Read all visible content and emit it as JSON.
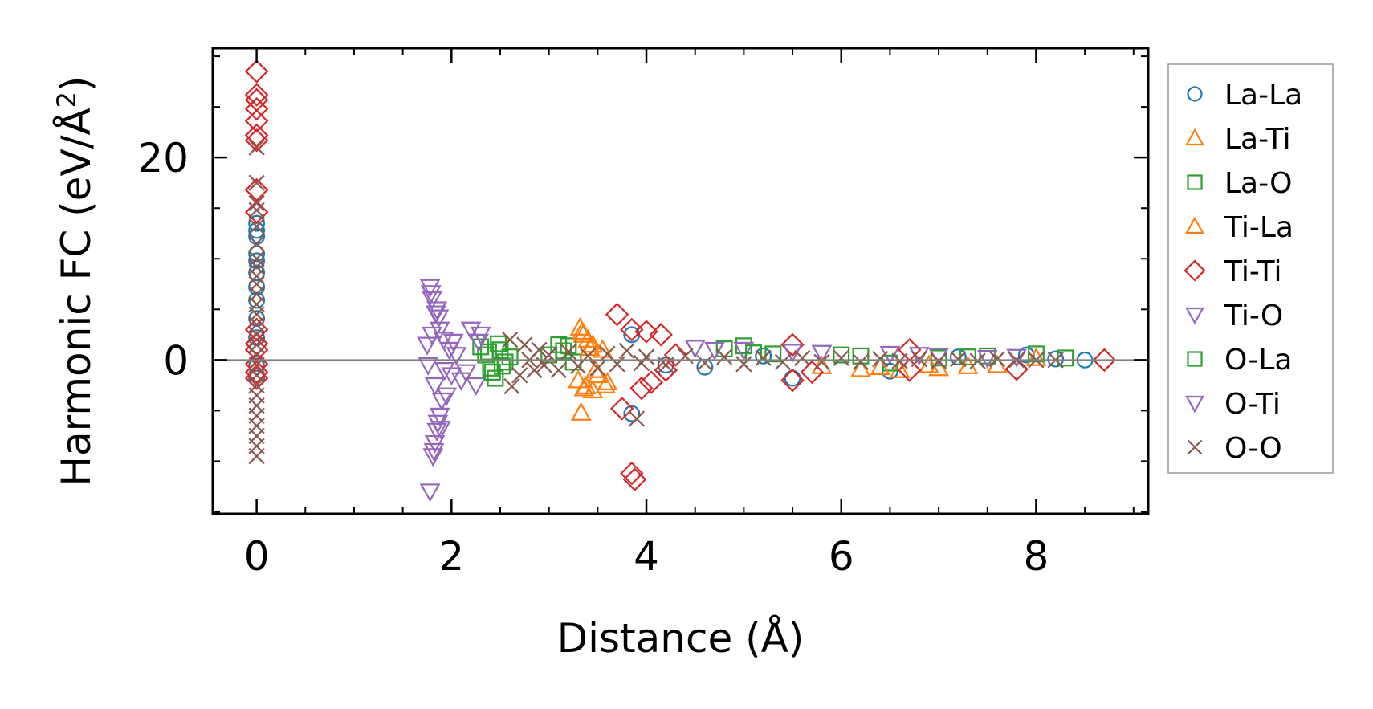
{
  "chart_data": {
    "type": "scatter",
    "title": "",
    "xlabel": "Distance (Å)",
    "ylabel_main": "Harmonic FC (eV/Å",
    "ylabel_sup": "2",
    "ylabel_close": ")",
    "xlim": [
      -0.45,
      9.15
    ],
    "ylim": [
      -15.2,
      30.8
    ],
    "xticks": [
      0,
      2,
      4,
      6,
      8
    ],
    "xtick_labels": [
      "0",
      "2",
      "4",
      "6",
      "8"
    ],
    "yticks": [
      0,
      20
    ],
    "ytick_labels": [
      "0",
      "20"
    ],
    "grid": false,
    "zero_line": true,
    "legend_position": "outside-right",
    "series": [
      {
        "name": "La-La",
        "marker": "circle",
        "color": "#1f77b4",
        "points": [
          [
            0,
            13.5
          ],
          [
            0,
            12.8
          ],
          [
            0,
            12.2
          ],
          [
            0,
            10.5
          ],
          [
            0,
            9.8
          ],
          [
            0,
            8.6
          ],
          [
            0,
            7.2
          ],
          [
            0,
            5.9
          ],
          [
            0,
            4.1
          ],
          [
            0,
            2.2
          ],
          [
            0,
            -0.6
          ],
          [
            0,
            -1.8
          ],
          [
            3.85,
            -5.3
          ],
          [
            3.85,
            2.5
          ],
          [
            4.2,
            -0.5
          ],
          [
            4.6,
            -0.7
          ],
          [
            5.2,
            0.4
          ],
          [
            5.5,
            -1.8
          ],
          [
            6.5,
            -1.1
          ],
          [
            7.2,
            0.3
          ],
          [
            7.9,
            0.5
          ],
          [
            8.2,
            0.1
          ],
          [
            8.5,
            0.0
          ]
        ]
      },
      {
        "name": "La-Ti",
        "marker": "triangle-up",
        "color": "#ff7f0e",
        "points": [
          [
            3.32,
            3.2
          ],
          [
            3.35,
            2.5
          ],
          [
            3.4,
            2.0
          ],
          [
            3.45,
            1.5
          ],
          [
            3.3,
            -2.0
          ],
          [
            3.38,
            -2.6
          ],
          [
            3.45,
            -3.0
          ],
          [
            3.33,
            -5.2
          ],
          [
            3.5,
            -1.5
          ],
          [
            3.55,
            1.0
          ],
          [
            3.6,
            -2.2
          ],
          [
            6.2,
            -0.9
          ],
          [
            6.6,
            -1.0
          ],
          [
            7.0,
            -0.8
          ],
          [
            7.3,
            -0.6
          ],
          [
            7.6,
            -0.5
          ],
          [
            8.0,
            0.2
          ]
        ]
      },
      {
        "name": "La-O",
        "marker": "square",
        "color": "#2ca02c",
        "points": [
          [
            2.3,
            1.3
          ],
          [
            2.35,
            0.5
          ],
          [
            2.4,
            -0.8
          ],
          [
            2.45,
            -1.8
          ],
          [
            2.5,
            1.0
          ],
          [
            2.55,
            -0.2
          ],
          [
            2.6,
            0.3
          ],
          [
            3.0,
            0.5
          ],
          [
            3.1,
            1.5
          ],
          [
            3.2,
            1.4
          ],
          [
            3.25,
            -0.2
          ],
          [
            4.8,
            1.1
          ],
          [
            5.0,
            1.4
          ],
          [
            5.3,
            0.6
          ],
          [
            6.0,
            0.5
          ],
          [
            6.5,
            -0.3
          ],
          [
            7.0,
            0.2
          ],
          [
            7.5,
            0.4
          ],
          [
            8.0,
            0.6
          ],
          [
            8.3,
            0.2
          ]
        ]
      },
      {
        "name": "Ti-La",
        "marker": "triangle-up",
        "color": "#ff7f0e",
        "points": [
          [
            3.34,
            2.8
          ],
          [
            3.36,
            -2.8
          ],
          [
            3.42,
            1.2
          ],
          [
            3.48,
            -1.0
          ],
          [
            3.58,
            -2.5
          ],
          [
            5.8,
            -0.6
          ],
          [
            6.4,
            -0.7
          ],
          [
            6.9,
            -0.5
          ]
        ]
      },
      {
        "name": "Ti-Ti",
        "marker": "diamond",
        "color": "#d62728",
        "points": [
          [
            0,
            28.5
          ],
          [
            0,
            26.2
          ],
          [
            0,
            25.7
          ],
          [
            0,
            24.8
          ],
          [
            0,
            23.6
          ],
          [
            0,
            22.2
          ],
          [
            0,
            21.7
          ],
          [
            0,
            16.8
          ],
          [
            0,
            14.6
          ],
          [
            0,
            3.0
          ],
          [
            0,
            1.6
          ],
          [
            0,
            1.0
          ],
          [
            0,
            -0.4
          ],
          [
            0,
            -1.2
          ],
          [
            0,
            -1.8
          ],
          [
            3.7,
            4.5
          ],
          [
            3.75,
            -4.8
          ],
          [
            3.85,
            3.0
          ],
          [
            3.85,
            -11.2
          ],
          [
            3.88,
            -11.8
          ],
          [
            3.95,
            -2.8
          ],
          [
            4.0,
            2.8
          ],
          [
            4.05,
            -2.2
          ],
          [
            4.15,
            2.5
          ],
          [
            4.2,
            -1.0
          ],
          [
            4.3,
            0.5
          ],
          [
            5.5,
            1.5
          ],
          [
            5.5,
            -2.0
          ],
          [
            5.7,
            -1.2
          ],
          [
            6.7,
            1.0
          ],
          [
            6.7,
            -1.0
          ],
          [
            7.8,
            -0.9
          ],
          [
            8.7,
            0.0
          ]
        ]
      },
      {
        "name": "Ti-O",
        "marker": "triangle-down",
        "color": "#9467bd",
        "points": [
          [
            1.78,
            -13.0
          ],
          [
            1.78,
            7.2
          ],
          [
            1.8,
            6.0
          ],
          [
            1.82,
            -9.0
          ],
          [
            1.83,
            -8.2
          ],
          [
            1.85,
            5.0
          ],
          [
            1.85,
            -7.0
          ],
          [
            1.86,
            -6.2
          ],
          [
            1.87,
            4.2
          ],
          [
            1.88,
            -5.5
          ],
          [
            1.75,
            1.5
          ],
          [
            1.76,
            -0.5
          ],
          [
            1.8,
            2.5
          ],
          [
            1.83,
            -2.5
          ],
          [
            1.88,
            3.0
          ],
          [
            1.9,
            -4.0
          ],
          [
            1.92,
            2.0
          ],
          [
            1.95,
            -3.5
          ],
          [
            1.98,
            1.0
          ],
          [
            2.0,
            -1.5
          ],
          [
            2.05,
            0.5
          ],
          [
            2.1,
            -2.0
          ],
          [
            2.2,
            3.0
          ],
          [
            2.25,
            -2.5
          ],
          [
            2.3,
            2.5
          ],
          [
            4.5,
            1.2
          ],
          [
            5.0,
            1.0
          ],
          [
            5.5,
            0.8
          ],
          [
            6.5,
            0.6
          ],
          [
            7.0,
            0.4
          ],
          [
            7.5,
            0.2
          ]
        ]
      },
      {
        "name": "O-La",
        "marker": "square",
        "color": "#2ca02c",
        "points": [
          [
            2.38,
            0.8
          ],
          [
            2.42,
            -1.2
          ],
          [
            2.48,
            1.6
          ],
          [
            2.52,
            -0.6
          ],
          [
            3.15,
            0.9
          ],
          [
            5.1,
            0.7
          ],
          [
            6.2,
            0.4
          ],
          [
            7.3,
            0.3
          ]
        ]
      },
      {
        "name": "O-Ti",
        "marker": "triangle-down",
        "color": "#9467bd",
        "points": [
          [
            1.79,
            6.6
          ],
          [
            1.81,
            -9.5
          ],
          [
            1.84,
            4.6
          ],
          [
            1.89,
            -6.8
          ],
          [
            1.93,
            -1.0
          ],
          [
            2.02,
            1.8
          ],
          [
            2.15,
            -1.2
          ],
          [
            2.28,
            1.8
          ],
          [
            4.7,
            1.0
          ],
          [
            5.8,
            0.7
          ],
          [
            6.8,
            0.5
          ],
          [
            7.8,
            0.3
          ]
        ]
      },
      {
        "name": "O-O",
        "marker": "x",
        "color": "#8c564b",
        "points": [
          [
            0,
            21.0
          ],
          [
            0,
            17.5
          ],
          [
            0,
            15.5
          ],
          [
            0,
            14.8
          ],
          [
            0,
            13.2
          ],
          [
            0,
            11.5
          ],
          [
            0,
            10.0
          ],
          [
            0,
            9.2
          ],
          [
            0,
            8.3
          ],
          [
            0,
            7.5
          ],
          [
            0,
            6.5
          ],
          [
            0,
            5.5
          ],
          [
            0,
            4.5
          ],
          [
            0,
            3.5
          ],
          [
            0,
            2.5
          ],
          [
            0,
            1.5
          ],
          [
            0,
            0.5
          ],
          [
            0,
            -0.5
          ],
          [
            0,
            -1.5
          ],
          [
            0,
            -2.5
          ],
          [
            0,
            -3.5
          ],
          [
            0,
            -4.5
          ],
          [
            0,
            -5.5
          ],
          [
            0,
            -6.5
          ],
          [
            0,
            -7.5
          ],
          [
            0,
            -8.5
          ],
          [
            0,
            -9.5
          ],
          [
            2.6,
            2.0
          ],
          [
            2.62,
            -2.6
          ],
          [
            2.7,
            -1.5
          ],
          [
            2.75,
            1.5
          ],
          [
            2.8,
            0.0
          ],
          [
            2.85,
            -1.0
          ],
          [
            2.9,
            1.0
          ],
          [
            2.95,
            -0.5
          ],
          [
            3.0,
            0.5
          ],
          [
            3.1,
            -1.0
          ],
          [
            3.2,
            0.8
          ],
          [
            3.3,
            -0.6
          ],
          [
            3.4,
            0.4
          ],
          [
            3.5,
            -0.8
          ],
          [
            3.6,
            0.6
          ],
          [
            3.7,
            -0.4
          ],
          [
            3.8,
            0.9
          ],
          [
            3.9,
            -5.8
          ],
          [
            3.95,
            -0.3
          ],
          [
            4.0,
            0.3
          ],
          [
            4.2,
            -0.5
          ],
          [
            4.4,
            0.4
          ],
          [
            4.6,
            -0.3
          ],
          [
            4.8,
            0.3
          ],
          [
            5.0,
            -0.4
          ],
          [
            5.2,
            0.2
          ],
          [
            5.4,
            -0.2
          ],
          [
            5.6,
            0.2
          ],
          [
            5.8,
            -0.2
          ],
          [
            6.0,
            0.2
          ],
          [
            6.2,
            -0.2
          ],
          [
            6.4,
            0.1
          ],
          [
            6.6,
            -0.1
          ],
          [
            6.8,
            0.1
          ],
          [
            7.0,
            -0.1
          ],
          [
            7.2,
            0.1
          ],
          [
            7.4,
            -0.1
          ],
          [
            7.6,
            0.1
          ],
          [
            7.8,
            0.0
          ],
          [
            8.0,
            0.0
          ],
          [
            8.2,
            0.0
          ]
        ]
      }
    ]
  }
}
